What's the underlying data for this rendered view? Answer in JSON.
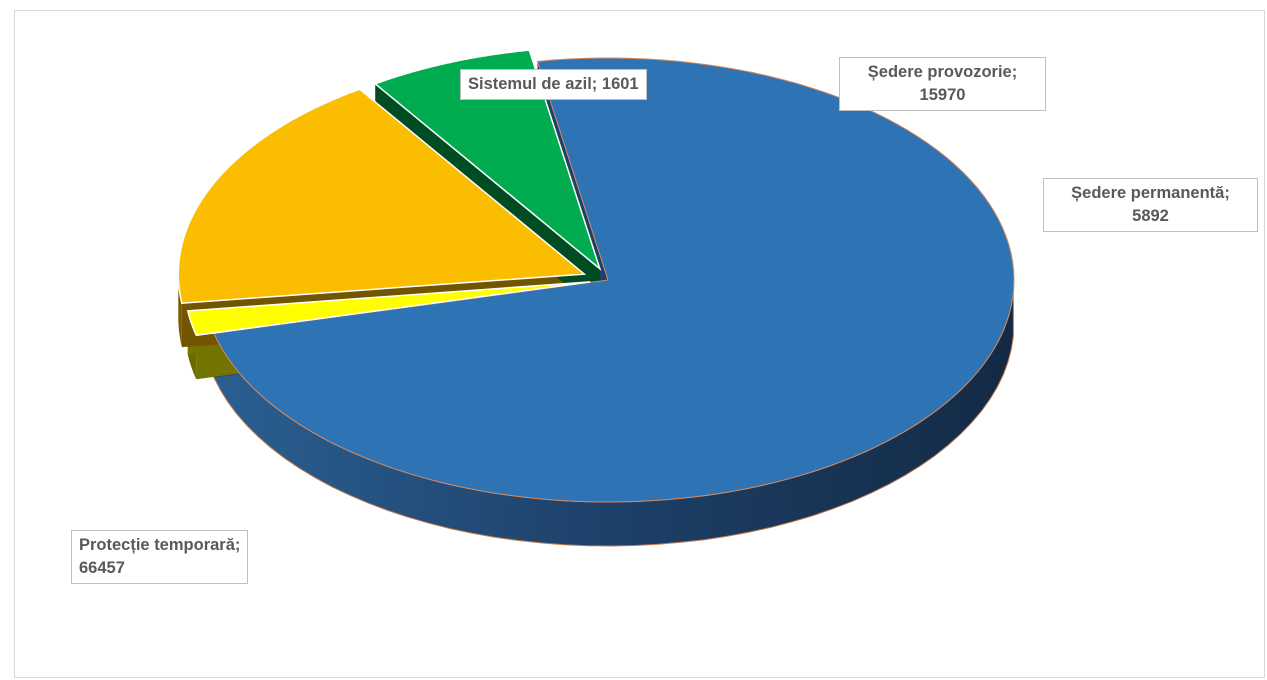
{
  "chart_data": {
    "type": "pie",
    "title": "",
    "series": [
      {
        "values": [
          66457,
          1601,
          15970,
          5892
        ],
        "colors": [
          "#2e74b5",
          "#ffff00",
          "#fbbd00",
          "#00ac4f"
        ]
      }
    ],
    "categories": [
      "Protecție temporară",
      "Sistemul de azil",
      "Ședere provozorie",
      "Ședere permanentă"
    ],
    "labels": [
      {
        "name": "Protecție temporară;",
        "value": "66457"
      },
      {
        "name": "Sistemul de azil;",
        "value": "1601"
      },
      {
        "name": "Ședere provozorie;",
        "value": "15970"
      },
      {
        "name": "Ședere permanentă;",
        "value": "5892"
      }
    ],
    "style": "3d-exploded",
    "legend": "none"
  }
}
